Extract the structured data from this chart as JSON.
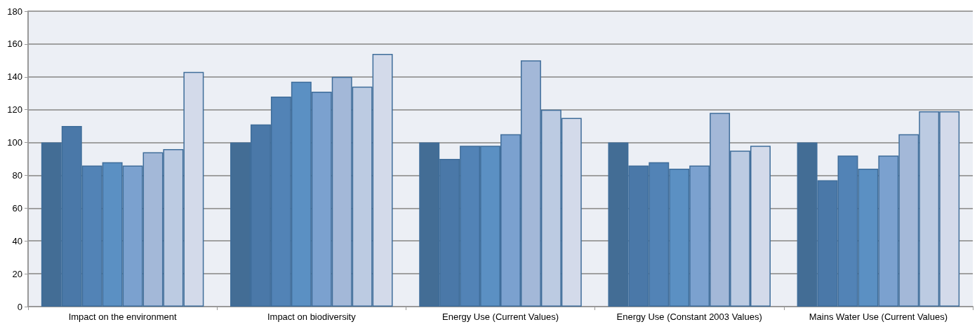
{
  "chart_data": {
    "type": "bar",
    "categories": [
      "Impact on the environment",
      "Impact on biodiversity",
      "Energy Use (Current Values)",
      "Energy Use (Constant 2003 Values)",
      "Mains Water Use (Current Values)"
    ],
    "series": [
      {
        "color": "#436d95",
        "values": [
          100,
          100,
          100,
          100,
          100
        ]
      },
      {
        "color": "#4a78a8",
        "values": [
          110,
          111,
          90,
          86,
          77
        ]
      },
      {
        "color": "#5283b6",
        "values": [
          86,
          128,
          98,
          88,
          92
        ]
      },
      {
        "color": "#5b90c3",
        "values": [
          88,
          137,
          98,
          84,
          84
        ]
      },
      {
        "color": "#7ba1cf",
        "values": [
          86,
          131,
          105,
          86,
          92
        ]
      },
      {
        "color": "#a3b8d8",
        "values": [
          94,
          140,
          150,
          118,
          105
        ]
      },
      {
        "color": "#bccbe2",
        "values": [
          96,
          134,
          120,
          95,
          119
        ]
      },
      {
        "color": "#d3daea",
        "values": [
          143,
          154,
          115,
          98,
          119
        ]
      }
    ],
    "ylim": [
      0,
      180
    ],
    "yticks": [
      0,
      20,
      40,
      60,
      80,
      100,
      120,
      140,
      160,
      180
    ],
    "grid": "y"
  }
}
